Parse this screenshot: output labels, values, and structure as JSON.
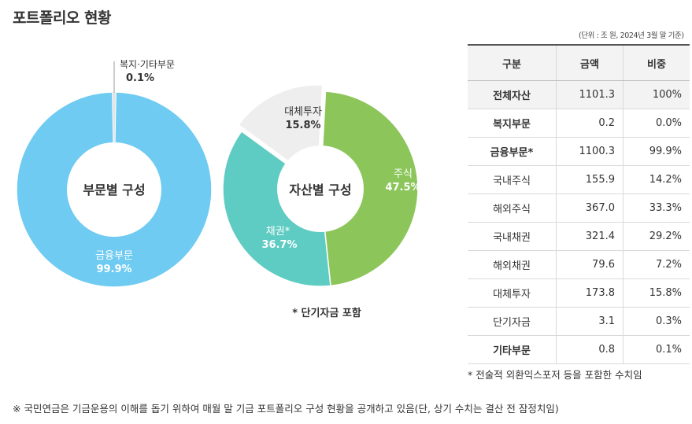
{
  "title": "포트폴리오 현황",
  "chart_data": [
    {
      "type": "pie",
      "center_label": "부문별 구성",
      "slices": [
        {
          "label": "금융부문",
          "value": 99.9,
          "value_text": "99.9%",
          "color": "#6fcbf1"
        },
        {
          "label": "복지·기타부문",
          "value": 0.1,
          "value_text": "0.1%",
          "color": "#e3e3e3"
        }
      ]
    },
    {
      "type": "pie",
      "center_label": "자산별 구성",
      "note": "* 단기자금 포함",
      "slices": [
        {
          "label": "주식",
          "value": 47.5,
          "value_text": "47.5%",
          "color": "#8cc65b"
        },
        {
          "label": "채권*",
          "value": 36.7,
          "value_text": "36.7%",
          "color": "#5fccc3"
        },
        {
          "label": "대체투자",
          "value": 15.8,
          "value_text": "15.8%",
          "color": "#eeeeee"
        }
      ]
    }
  ],
  "table": {
    "unit_note": "(단위 : 조 원, 2024년 3월 말 기준)",
    "headers": [
      "구분",
      "금액",
      "비중"
    ],
    "rows": [
      {
        "name": "전체자산",
        "amount": "1101.3",
        "ratio": "100%",
        "bold": true,
        "shade": true
      },
      {
        "name": "복지부문",
        "amount": "0.2",
        "ratio": "0.0%",
        "bold": true,
        "shade": false
      },
      {
        "name": "금융부문*",
        "amount": "1100.3",
        "ratio": "99.9%",
        "bold": true,
        "shade": false
      },
      {
        "name": "국내주식",
        "amount": "155.9",
        "ratio": "14.2%",
        "bold": false,
        "shade": false
      },
      {
        "name": "해외주식",
        "amount": "367.0",
        "ratio": "33.3%",
        "bold": false,
        "shade": false
      },
      {
        "name": "국내채권",
        "amount": "321.4",
        "ratio": "29.2%",
        "bold": false,
        "shade": false
      },
      {
        "name": "해외채권",
        "amount": "79.6",
        "ratio": "7.2%",
        "bold": false,
        "shade": false
      },
      {
        "name": "대체투자",
        "amount": "173.8",
        "ratio": "15.8%",
        "bold": false,
        "shade": false
      },
      {
        "name": "단기자금",
        "amount": "3.1",
        "ratio": "0.3%",
        "bold": false,
        "shade": false
      },
      {
        "name": "기타부문",
        "amount": "0.8",
        "ratio": "0.1%",
        "bold": true,
        "shade": false
      }
    ],
    "note": "* 전술적 외환익스포저 등을 포함한 수치임"
  },
  "footer_note": "※  국민연금은 기금운용의 이해를 돕기 위하여 매월 말 기금 포트폴리오 구성 현황을 공개하고 있음(단, 상기 수치는 결산 전 잠정치임)"
}
